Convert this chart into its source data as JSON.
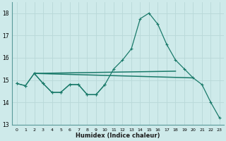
{
  "xlabel": "Humidex (Indice chaleur)",
  "ylabel": "",
  "bg_color": "#ceeaea",
  "grid_color": "#b8d8d8",
  "line_color": "#1a7a6a",
  "x": [
    0,
    1,
    2,
    3,
    4,
    5,
    6,
    7,
    8,
    9,
    10,
    11,
    12,
    13,
    14,
    15,
    16,
    17,
    18,
    19,
    20,
    21,
    22,
    23
  ],
  "curve_main": [
    14.85,
    14.75,
    15.3,
    14.85,
    14.45,
    14.45,
    14.8,
    14.8,
    14.35,
    14.35,
    14.8,
    15.5,
    15.9,
    16.4,
    17.75,
    18.0,
    17.5,
    16.6,
    15.9,
    15.5,
    15.1,
    14.8,
    14.0,
    13.3
  ],
  "curve_zigzag_x": [
    0,
    1,
    2,
    3,
    4,
    5,
    6,
    7,
    8,
    9,
    10
  ],
  "curve_zigzag_y": [
    14.85,
    14.75,
    15.3,
    14.85,
    14.45,
    14.45,
    14.8,
    14.8,
    14.35,
    14.35,
    14.8
  ],
  "flat_line1_x": [
    2,
    18
  ],
  "flat_line1_y": [
    15.3,
    15.4
  ],
  "flat_line2_x": [
    2,
    20
  ],
  "flat_line2_y": [
    15.3,
    15.1
  ],
  "ylim": [
    13.0,
    18.5
  ],
  "xlim": [
    -0.5,
    23.5
  ],
  "yticks": [
    13,
    14,
    15,
    16,
    17,
    18
  ]
}
